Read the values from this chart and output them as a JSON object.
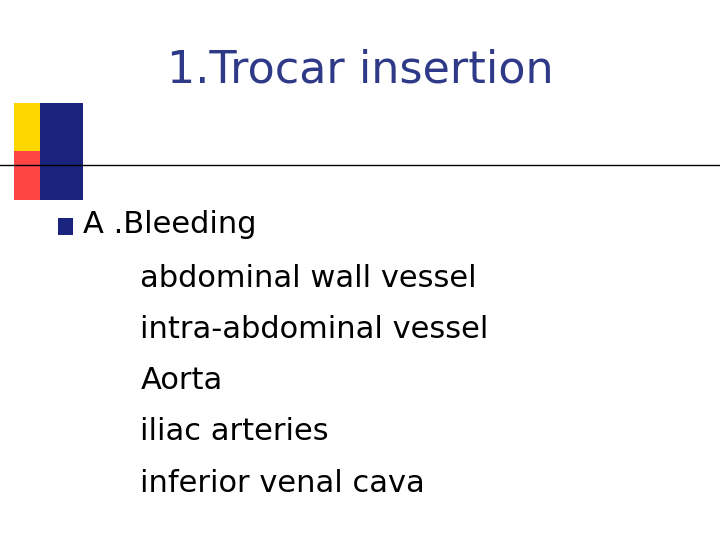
{
  "title": "1.Trocar insertion",
  "title_color": "#2E3A87",
  "title_fontsize": 32,
  "title_font": "DejaVu Sans",
  "background_color": "#ffffff",
  "bullet_text": "A .Bleeding",
  "bullet_color": "#000000",
  "bullet_fontsize": 22,
  "sub_items": [
    "abdominal wall vessel",
    "intra-abdominal vessel",
    "Aorta",
    "iliac arteries",
    "inferior venal cava"
  ],
  "sub_fontsize": 22,
  "sub_color": "#000000",
  "bullet_square_color": "#1a237e",
  "decoration_yellow": "#FFD700",
  "decoration_red": "#FF4444",
  "decoration_blue": "#1a237e",
  "line_color": "#000000"
}
